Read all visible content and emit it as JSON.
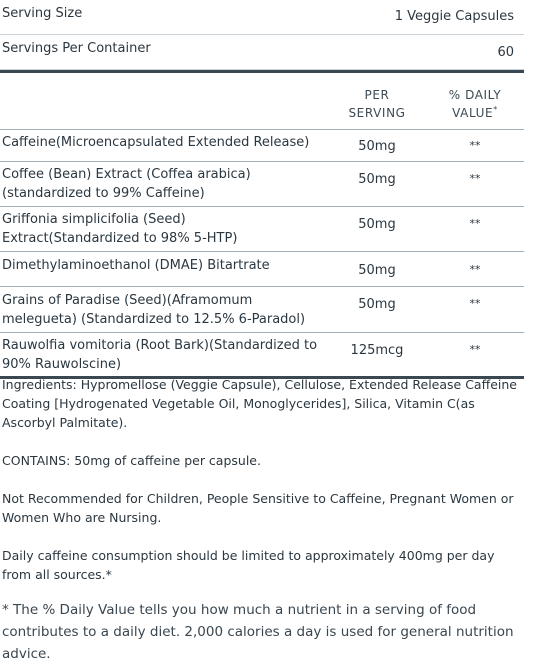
{
  "serving": {
    "size_label": "Serving Size",
    "size_value": "1 Veggie Capsules",
    "per_container_label": "Servings Per Container",
    "per_container_value": "60"
  },
  "table": {
    "col_per_serving_line1": "PER",
    "col_per_serving_line2": "SERVING",
    "col_daily_line1": "% DAILY",
    "col_daily_line2": "VALUE",
    "col_daily_mark": "*",
    "rows": [
      {
        "name": "Caffeine(Microencapsulated Extended Release)",
        "amount": "50mg",
        "dv": "**"
      },
      {
        "name": "Coffee (Bean) Extract (Coffea arabica) (standardized to 99% Caffeine)",
        "amount": "50mg",
        "dv": "**"
      },
      {
        "name": "Griffonia simplicifolia (Seed) Extract(Standardized to 98% 5-HTP)",
        "amount": "50mg",
        "dv": "**"
      },
      {
        "name": "Dimethylaminoethanol (DMAE) Bitartrate",
        "amount": "50mg",
        "dv": "**"
      },
      {
        "name": "Grains of Paradise (Seed)(Aframomum melegueta) (Standardized to 12.5% 6-Paradol)",
        "amount": "50mg",
        "dv": "**"
      },
      {
        "name": "Rauwolfia vomitoria (Root Bark)(Standardized to 90% Rauwolscine)",
        "amount": "125mcg",
        "dv": "**"
      }
    ]
  },
  "notes": {
    "ingredients": "Ingredients: Hypromellose (Veggie Capsule), Cellulose, Extended Release Caffeine Coating [Hydrogenated Vegetable Oil, Monoglycerides], Silica, Vitamin C(as Ascorbyl Palmitate).",
    "contains": "CONTAINS: 50mg of caffeine per capsule.",
    "not_recommended": "Not Recommended for Children, People Sensitive to Caffeine, Pregnant Women or Women Who are Nursing.",
    "daily_limit": "Daily caffeine consumption should be limited to approximately 400mg per day from all sources.*"
  },
  "footnote": "* The % Daily Value tells you how much a nutrient in a serving of food contributes to a daily diet. 2,000 calories a day is used for general nutrition advice."
}
